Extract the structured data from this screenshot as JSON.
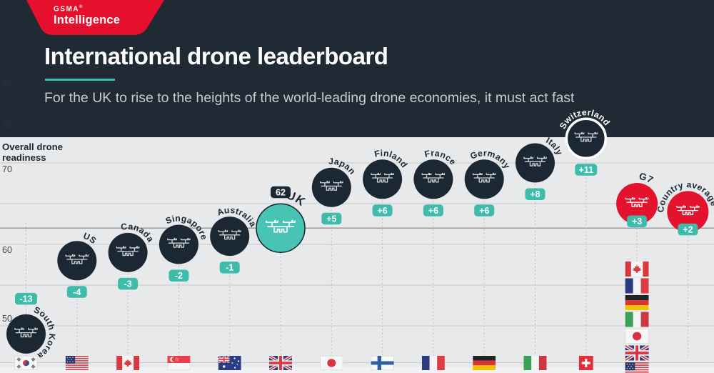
{
  "header": {
    "logo_line1": "GSMA",
    "logo_reg": "®",
    "logo_line2": "Intelligence",
    "title": "International drone leaderboard",
    "subtitle": "For the UK to rise to the heights of the world-leading drone economies, it must act fast"
  },
  "axis": {
    "label_line1": "Overall drone",
    "label_line2": "readiness",
    "tick_70": "70",
    "tick_60": "60",
    "tick_50": "50",
    "faint_tick_80": "80",
    "faint_tick_75": "75"
  },
  "chart_data": {
    "type": "scatter",
    "title": "International drone leaderboard",
    "subtitle": "For the UK to rise to the heights of the world-leading drone economies, it must act fast",
    "ylabel": "Overall drone readiness",
    "y_ticks": [
      70,
      60,
      50
    ],
    "gridline_values": [
      70,
      65,
      60,
      55,
      50,
      45
    ],
    "ylim": [
      45,
      80
    ],
    "baseline": {
      "name": "UK",
      "score": 62,
      "badge": "62"
    },
    "points": [
      {
        "name": "South Korea",
        "score": 49,
        "delta": "-13",
        "flag": "kr"
      },
      {
        "name": "US",
        "score": 58,
        "delta": "-4",
        "flag": "us"
      },
      {
        "name": "Canada",
        "score": 59,
        "delta": "-3",
        "flag": "ca"
      },
      {
        "name": "Singapore",
        "score": 60,
        "delta": "-2",
        "flag": "sg"
      },
      {
        "name": "Australia",
        "score": 61,
        "delta": "-1",
        "flag": "au"
      },
      {
        "name": "UK",
        "score": 62,
        "delta": "62",
        "flag": "gb",
        "highlight": true
      },
      {
        "name": "Japan",
        "score": 67,
        "delta": "+5",
        "flag": "jp"
      },
      {
        "name": "Finland",
        "score": 68,
        "delta": "+6",
        "flag": "fi"
      },
      {
        "name": "France",
        "score": 68,
        "delta": "+6",
        "flag": "fr"
      },
      {
        "name": "Germany",
        "score": 68,
        "delta": "+6",
        "flag": "de"
      },
      {
        "name": "Italy",
        "score": 70,
        "delta": "+8",
        "flag": "it"
      },
      {
        "name": "Switzerland",
        "score": 73,
        "delta": "+11",
        "flag": "ch",
        "ring": true
      },
      {
        "name": "G7",
        "score": 65,
        "delta": "+3",
        "flag": null,
        "color": "red",
        "flag_stack": [
          "ca",
          "fr",
          "de",
          "it",
          "jp",
          "gb",
          "us"
        ]
      },
      {
        "name": "Country average",
        "score": 64,
        "delta": "+2",
        "flag": null,
        "color": "red"
      }
    ],
    "colors": {
      "header_band": "#1f2a35",
      "circle_navy": "#1b2834",
      "uk_teal": "#48c4b4",
      "badge_teal": "#3dbcab",
      "red": "#e5122d",
      "chart_bg": "#e8e9ea",
      "bottom_strip": "#f0f1f2",
      "gridline": "#c7cacb",
      "uk_reference_line": "#8f9496",
      "label_navy": "#1b2834",
      "label_white": "#ffffff"
    }
  }
}
